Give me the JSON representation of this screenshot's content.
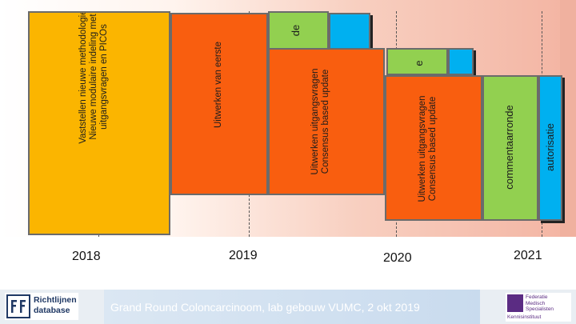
{
  "slide": {
    "years": [
      "2018",
      "2019",
      "2020",
      "2021"
    ],
    "phases": {
      "methodology": "Vaststellen nieuwe methodologie\nNieuwe modulaire indeling met\nuitgangsvragen en PICOs",
      "first": "Uitwerken van eerste",
      "round1_fragment": "de",
      "round1_update": "Uitwerken uitgangsvragen\nConsensus based update",
      "round2_fragment": "e",
      "round2_update": "Uitwerken uitgangsvragen\nConsensus based update",
      "comment": "commentaarronde",
      "authorization": "autorisatie"
    },
    "footer": {
      "caption": "Grand Round Coloncarcinoom, lab gebouw VUMC, 2 okt 2019",
      "left_logo_text": "Richtlijnen\ndatabase",
      "right_logo_text": "Federatie\nMedisch\nSpecialisten",
      "right_logo_sub": "Kennisinstituut"
    },
    "colors": {
      "yellow": "#fbb500",
      "orange": "#f95e0f",
      "green": "#92d050",
      "blue": "#00b0f0"
    }
  }
}
